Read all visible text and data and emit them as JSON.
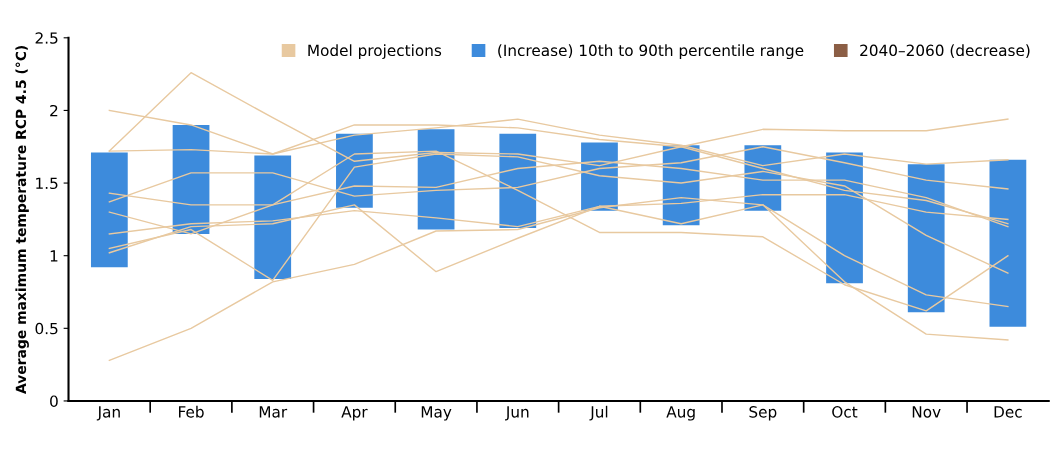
{
  "chart_data": {
    "type": "bar",
    "ylabel": "Average maximum temperature RCP 4.5 (°C)",
    "categories": [
      "Jan",
      "Feb",
      "Mar",
      "Apr",
      "May",
      "Jun",
      "Jul",
      "Aug",
      "Sep",
      "Oct",
      "Nov",
      "Dec"
    ],
    "ylim": [
      0,
      2.5
    ],
    "yticks": [
      0,
      0.5,
      1,
      1.5,
      2,
      2.5
    ],
    "grid": false,
    "legend": "top",
    "series": [
      {
        "type": "line",
        "name": "Model projections",
        "color": "#e8c9a0",
        "values": [
          1.72,
          2.26,
          1.95,
          1.65,
          1.71,
          1.7,
          1.62,
          1.75,
          1.6,
          1.45,
          1.38,
          1.22
        ]
      },
      {
        "type": "line",
        "color": "#e8c9a0",
        "values": [
          2.0,
          1.9,
          1.7,
          1.9,
          1.9,
          1.88,
          1.8,
          1.75,
          1.87,
          1.86,
          1.86,
          1.94
        ]
      },
      {
        "type": "line",
        "color": "#e8c9a0",
        "values": [
          0.28,
          0.5,
          0.82,
          0.94,
          1.17,
          1.18,
          1.33,
          1.4,
          1.35,
          0.82,
          0.46,
          0.42
        ]
      },
      {
        "type": "line",
        "color": "#e8c9a0",
        "values": [
          1.72,
          1.73,
          1.7,
          1.83,
          1.88,
          1.94,
          1.83,
          1.76,
          1.62,
          1.7,
          1.63,
          1.66
        ]
      },
      {
        "type": "line",
        "color": "#e8c9a0",
        "values": [
          1.43,
          1.35,
          1.35,
          1.48,
          1.47,
          1.6,
          1.65,
          1.6,
          1.52,
          1.52,
          1.4,
          1.2
        ]
      },
      {
        "type": "line",
        "color": "#e8c9a0",
        "values": [
          1.37,
          1.57,
          1.57,
          1.41,
          1.45,
          1.47,
          1.6,
          1.64,
          1.75,
          1.64,
          1.52,
          1.46
        ]
      },
      {
        "type": "line",
        "color": "#e8c9a0",
        "values": [
          1.15,
          1.22,
          1.24,
          1.31,
          1.26,
          1.2,
          1.34,
          1.36,
          1.42,
          1.42,
          1.3,
          1.25
        ]
      },
      {
        "type": "line",
        "color": "#e8c9a0",
        "values": [
          1.02,
          1.2,
          1.22,
          1.35,
          0.89,
          1.12,
          1.34,
          1.22,
          1.35,
          1.0,
          0.73,
          0.65
        ]
      },
      {
        "type": "line",
        "color": "#e8c9a0",
        "values": [
          1.05,
          1.18,
          0.83,
          1.61,
          1.7,
          1.68,
          1.55,
          1.5,
          1.58,
          1.48,
          1.14,
          0.88
        ]
      },
      {
        "type": "line",
        "color": "#e8c9a0",
        "values": [
          1.3,
          1.15,
          1.35,
          1.7,
          1.72,
          1.45,
          1.16,
          1.16,
          1.13,
          0.8,
          0.62,
          1.0
        ]
      },
      {
        "name": "(Increase) 10th to 90th percentile range",
        "color": "#3d8bdc",
        "base": [
          0.92,
          1.15,
          0.84,
          1.33,
          1.18,
          1.19,
          1.31,
          1.21,
          1.31,
          0.81,
          0.61,
          0.51
        ],
        "values": [
          0.79,
          0.75,
          0.85,
          0.51,
          0.69,
          0.65,
          0.47,
          0.55,
          0.45,
          0.9,
          1.02,
          1.15
        ]
      },
      {
        "type": "bar",
        "name": "2040–2060 (decrease)",
        "color": "#8b5e45",
        "values": [
          null,
          null,
          null,
          null,
          null,
          null,
          null,
          null,
          null,
          null,
          null,
          null
        ]
      }
    ]
  }
}
